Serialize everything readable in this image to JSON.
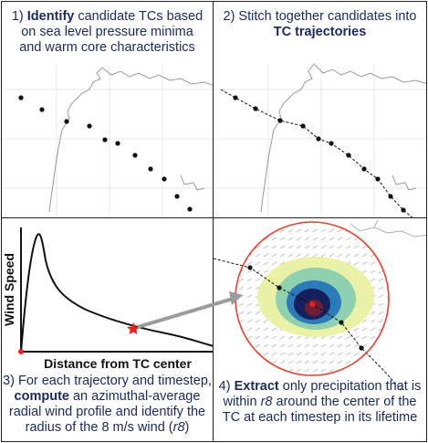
{
  "panel1": {
    "num": "1)",
    "bold": "Identify",
    "line1_rest": " candidate TCs based",
    "line2": "on sea level pressure minima",
    "line3": "and warm core characteristics"
  },
  "panel2": {
    "line1": "2) Stitch together candidates into",
    "bold": "TC trajectories"
  },
  "panel3": {
    "chart_data": {
      "type": "line",
      "xlabel": "Distance from TC center",
      "ylabel": "Wind Speed",
      "marker_label": "r8"
    },
    "line1": "3) For each trajectory and timestep,",
    "bold": "compute",
    "line2_rest": " an azimuthal-average",
    "line3": "radial wind profile and identify the",
    "line4_pre": "radius of the 8 m/s wind (",
    "r8": "r8",
    "line4_post": ")"
  },
  "panel4": {
    "num": "4) ",
    "bold": "Extract",
    "line1_rest": " only precipitation that is",
    "line2_pre": "within ",
    "r8": "r8",
    "line2_post": " around the center of the",
    "line3": "TC at each timestep in its lifetime"
  },
  "colors": {
    "text": "#1a2a5c",
    "circle": "#e8412c",
    "marker": "#e8231c",
    "precip_outer": "#e9f2a6",
    "precip_mid": "#8fd0b0",
    "precip_inner": "#2a7bb8",
    "precip_core": "#16205e",
    "eye": "#6e1f33"
  }
}
